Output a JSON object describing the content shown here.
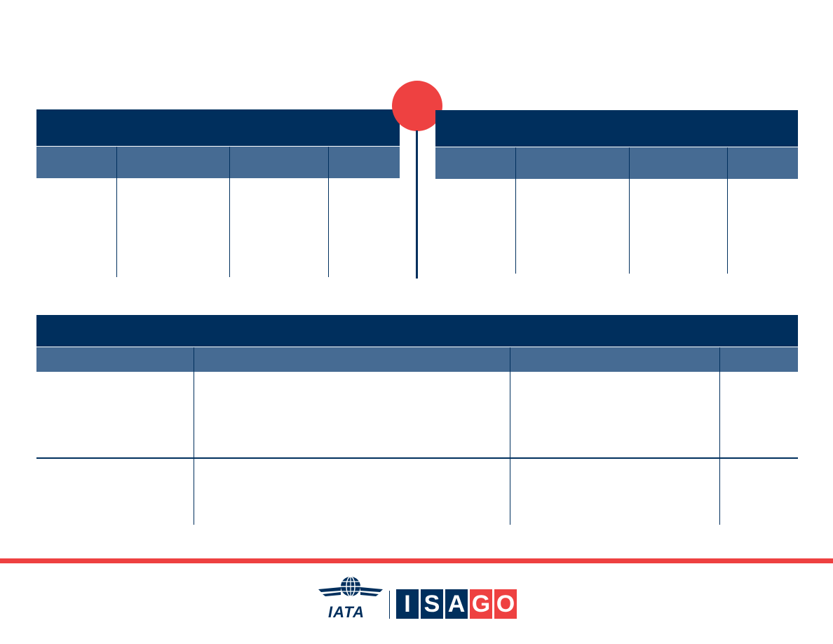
{
  "timeline": {
    "left_panel": {
      "title": "",
      "columns": [
        "",
        "",
        "",
        ""
      ]
    },
    "right_panel": {
      "title": "",
      "columns": [
        "",
        "",
        "",
        ""
      ]
    }
  },
  "bottom_table": {
    "title": "",
    "columns": [
      "",
      "",
      "",
      ""
    ],
    "rows": [
      [
        "",
        "",
        "",
        ""
      ],
      [
        "",
        "",
        "",
        ""
      ]
    ]
  },
  "footer": {
    "iata_logo_text": "IATA",
    "isago_logo_letters": [
      "I",
      "S",
      "A",
      "G",
      "O"
    ]
  },
  "colors": {
    "navy": "#002F5D",
    "steel_blue": "#466B93",
    "accent_red": "#EE4141"
  },
  "icons": [
    "globe-wings-icon"
  ]
}
